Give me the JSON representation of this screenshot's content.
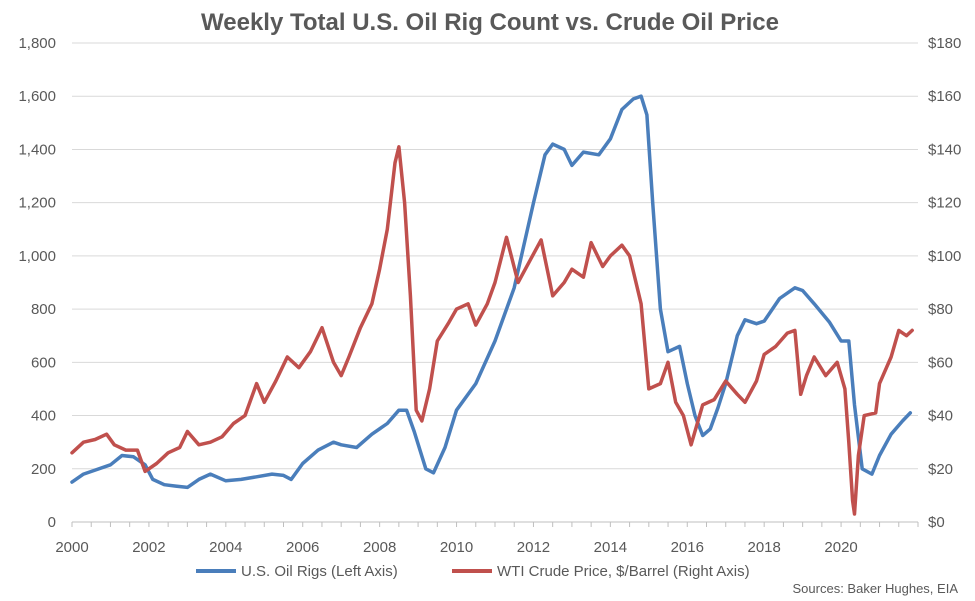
{
  "chart_data": {
    "type": "line",
    "title": "Weekly Total U.S. Oil Rig Count vs. Crude Oil Price",
    "source": "Sources: Baker Hughes, EIA",
    "x_ticks": [
      "2000",
      "2002",
      "2004",
      "2006",
      "2008",
      "2010",
      "2012",
      "2014",
      "2016",
      "2018",
      "2020"
    ],
    "xlim": [
      2000,
      2022
    ],
    "left_axis": {
      "ylim": [
        0,
        1800
      ],
      "ticks": [
        "0",
        "200",
        "400",
        "600",
        "800",
        "1,000",
        "1,200",
        "1,400",
        "1,600",
        "1,800"
      ]
    },
    "right_axis": {
      "ylim": [
        0,
        180
      ],
      "ticks": [
        "$0",
        "$20",
        "$40",
        "$60",
        "$80",
        "$100",
        "$120",
        "$140",
        "$160",
        "$180"
      ]
    },
    "grid": true,
    "legend_position": "bottom",
    "series": [
      {
        "name": "U.S. Oil Rigs (Left Axis)",
        "axis": "left",
        "color": "#4a7ebb",
        "points": [
          [
            2000.0,
            150
          ],
          [
            2000.3,
            180
          ],
          [
            2000.6,
            195
          ],
          [
            2001.0,
            215
          ],
          [
            2001.3,
            250
          ],
          [
            2001.6,
            245
          ],
          [
            2001.9,
            215
          ],
          [
            2002.1,
            160
          ],
          [
            2002.4,
            140
          ],
          [
            2002.7,
            135
          ],
          [
            2003.0,
            130
          ],
          [
            2003.3,
            160
          ],
          [
            2003.6,
            180
          ],
          [
            2004.0,
            155
          ],
          [
            2004.4,
            160
          ],
          [
            2004.8,
            170
          ],
          [
            2005.2,
            180
          ],
          [
            2005.5,
            175
          ],
          [
            2005.7,
            160
          ],
          [
            2006.0,
            220
          ],
          [
            2006.4,
            270
          ],
          [
            2006.8,
            300
          ],
          [
            2007.0,
            290
          ],
          [
            2007.4,
            280
          ],
          [
            2007.8,
            330
          ],
          [
            2008.2,
            370
          ],
          [
            2008.5,
            420
          ],
          [
            2008.7,
            420
          ],
          [
            2008.9,
            340
          ],
          [
            2009.2,
            200
          ],
          [
            2009.4,
            185
          ],
          [
            2009.7,
            280
          ],
          [
            2010.0,
            420
          ],
          [
            2010.5,
            520
          ],
          [
            2011.0,
            680
          ],
          [
            2011.5,
            880
          ],
          [
            2012.0,
            1200
          ],
          [
            2012.3,
            1380
          ],
          [
            2012.5,
            1420
          ],
          [
            2012.8,
            1400
          ],
          [
            2013.0,
            1340
          ],
          [
            2013.3,
            1390
          ],
          [
            2013.7,
            1380
          ],
          [
            2014.0,
            1440
          ],
          [
            2014.3,
            1550
          ],
          [
            2014.6,
            1590
          ],
          [
            2014.8,
            1600
          ],
          [
            2014.95,
            1530
          ],
          [
            2015.1,
            1200
          ],
          [
            2015.3,
            800
          ],
          [
            2015.5,
            640
          ],
          [
            2015.8,
            660
          ],
          [
            2016.0,
            520
          ],
          [
            2016.2,
            400
          ],
          [
            2016.4,
            325
          ],
          [
            2016.6,
            350
          ],
          [
            2016.8,
            430
          ],
          [
            2017.0,
            520
          ],
          [
            2017.3,
            700
          ],
          [
            2017.5,
            760
          ],
          [
            2017.8,
            745
          ],
          [
            2018.0,
            755
          ],
          [
            2018.4,
            840
          ],
          [
            2018.8,
            880
          ],
          [
            2019.0,
            870
          ],
          [
            2019.3,
            820
          ],
          [
            2019.7,
            750
          ],
          [
            2020.0,
            680
          ],
          [
            2020.2,
            680
          ],
          [
            2020.35,
            440
          ],
          [
            2020.55,
            200
          ],
          [
            2020.8,
            180
          ],
          [
            2021.0,
            250
          ],
          [
            2021.3,
            330
          ],
          [
            2021.6,
            380
          ],
          [
            2021.8,
            410
          ]
        ]
      },
      {
        "name": "WTI Crude Price, $/Barrel (Right Axis)",
        "axis": "right",
        "color": "#c0504d",
        "points": [
          [
            2000.0,
            26
          ],
          [
            2000.3,
            30
          ],
          [
            2000.6,
            31
          ],
          [
            2000.9,
            33
          ],
          [
            2001.1,
            29
          ],
          [
            2001.4,
            27
          ],
          [
            2001.7,
            27
          ],
          [
            2001.9,
            19
          ],
          [
            2002.2,
            22
          ],
          [
            2002.5,
            26
          ],
          [
            2002.8,
            28
          ],
          [
            2003.0,
            34
          ],
          [
            2003.3,
            29
          ],
          [
            2003.6,
            30
          ],
          [
            2003.9,
            32
          ],
          [
            2004.2,
            37
          ],
          [
            2004.5,
            40
          ],
          [
            2004.8,
            52
          ],
          [
            2005.0,
            45
          ],
          [
            2005.3,
            53
          ],
          [
            2005.6,
            62
          ],
          [
            2005.9,
            58
          ],
          [
            2006.2,
            64
          ],
          [
            2006.5,
            73
          ],
          [
            2006.8,
            60
          ],
          [
            2007.0,
            55
          ],
          [
            2007.2,
            62
          ],
          [
            2007.5,
            73
          ],
          [
            2007.8,
            82
          ],
          [
            2008.0,
            95
          ],
          [
            2008.2,
            110
          ],
          [
            2008.4,
            135
          ],
          [
            2008.5,
            141
          ],
          [
            2008.65,
            120
          ],
          [
            2008.8,
            85
          ],
          [
            2008.95,
            42
          ],
          [
            2009.1,
            38
          ],
          [
            2009.3,
            50
          ],
          [
            2009.5,
            68
          ],
          [
            2009.8,
            75
          ],
          [
            2010.0,
            80
          ],
          [
            2010.3,
            82
          ],
          [
            2010.5,
            74
          ],
          [
            2010.8,
            82
          ],
          [
            2011.0,
            90
          ],
          [
            2011.3,
            107
          ],
          [
            2011.6,
            90
          ],
          [
            2011.9,
            98
          ],
          [
            2012.2,
            106
          ],
          [
            2012.5,
            85
          ],
          [
            2012.8,
            90
          ],
          [
            2013.0,
            95
          ],
          [
            2013.3,
            92
          ],
          [
            2013.5,
            105
          ],
          [
            2013.8,
            96
          ],
          [
            2014.0,
            100
          ],
          [
            2014.3,
            104
          ],
          [
            2014.5,
            100
          ],
          [
            2014.8,
            82
          ],
          [
            2015.0,
            50
          ],
          [
            2015.3,
            52
          ],
          [
            2015.5,
            60
          ],
          [
            2015.7,
            45
          ],
          [
            2015.9,
            40
          ],
          [
            2016.1,
            29
          ],
          [
            2016.4,
            44
          ],
          [
            2016.7,
            46
          ],
          [
            2017.0,
            53
          ],
          [
            2017.3,
            48
          ],
          [
            2017.5,
            45
          ],
          [
            2017.8,
            53
          ],
          [
            2018.0,
            63
          ],
          [
            2018.3,
            66
          ],
          [
            2018.6,
            71
          ],
          [
            2018.8,
            72
          ],
          [
            2018.95,
            48
          ],
          [
            2019.1,
            55
          ],
          [
            2019.3,
            62
          ],
          [
            2019.6,
            55
          ],
          [
            2019.9,
            60
          ],
          [
            2020.1,
            50
          ],
          [
            2020.2,
            30
          ],
          [
            2020.3,
            8
          ],
          [
            2020.35,
            3
          ],
          [
            2020.45,
            25
          ],
          [
            2020.6,
            40
          ],
          [
            2020.9,
            41
          ],
          [
            2021.0,
            52
          ],
          [
            2021.3,
            62
          ],
          [
            2021.5,
            72
          ],
          [
            2021.7,
            70
          ],
          [
            2021.85,
            72
          ]
        ]
      }
    ]
  }
}
